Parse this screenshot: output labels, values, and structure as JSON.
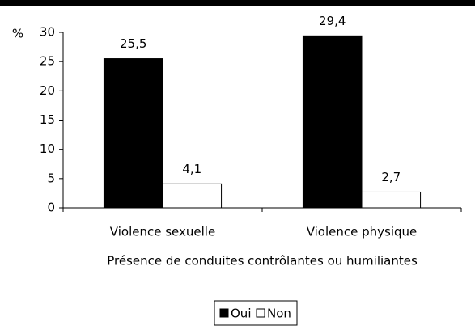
{
  "chart_data": {
    "type": "bar",
    "ylabel": "%",
    "xlabel": "Présence de conduites contrôlantes ou humiliantes",
    "categories": [
      "Violence sexuelle",
      "Violence physique"
    ],
    "series": [
      {
        "name": "Oui",
        "color": "#000000",
        "values": [
          25.5,
          29.4
        ],
        "value_labels": [
          "25,5",
          "29,4"
        ]
      },
      {
        "name": "Non",
        "color": "#ffffff",
        "values": [
          4.1,
          2.7
        ],
        "value_labels": [
          "4,1",
          "2,7"
        ]
      }
    ],
    "ylim": [
      0,
      30
    ],
    "yticks": [
      0,
      5,
      10,
      15,
      20,
      25,
      30
    ],
    "grid": false,
    "legend": "bottom"
  }
}
